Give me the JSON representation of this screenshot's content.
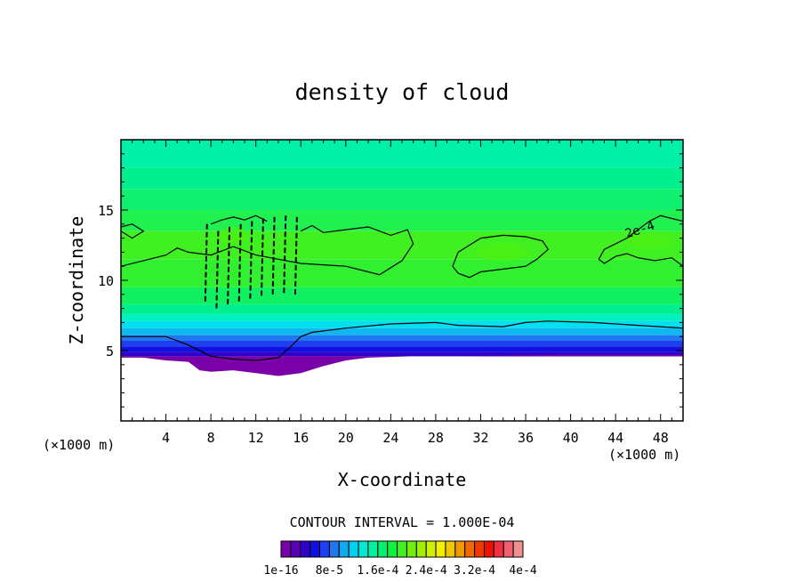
{
  "chart_data": {
    "type": "heatmap",
    "title": "density of cloud",
    "xlabel": "X-coordinate",
    "ylabel": "Z-coordinate",
    "x_unit_left": "(×1000 m)",
    "x_unit_right": "(×1000 m)",
    "xlim": [
      0,
      50
    ],
    "ylim": [
      0,
      20
    ],
    "x_ticks": [
      "4",
      "8",
      "12",
      "16",
      "20",
      "24",
      "28",
      "32",
      "36",
      "40",
      "44",
      "48"
    ],
    "y_ticks": [
      "5",
      "10",
      "15"
    ],
    "contour_interval_text": "CONTOUR INTERVAL = 1.000E-04",
    "contour_label": "2e-4",
    "colorbar_labels": [
      "1e-16",
      "8e-5",
      "1.6e-4",
      "2.4e-4",
      "3.2e-4",
      "4e-4"
    ],
    "colorbar_colors": [
      "#7a00a8",
      "#5a00b8",
      "#3000c8",
      "#1010e0",
      "#2040f0",
      "#1f78f0",
      "#12a8f0",
      "#00d0f0",
      "#00e8d0",
      "#00f0a0",
      "#00f070",
      "#10f040",
      "#40f020",
      "#70f010",
      "#a0f000",
      "#d0f000",
      "#f0f000",
      "#f0c800",
      "#f09800",
      "#f06800",
      "#f03800",
      "#f01000",
      "#f03040",
      "#f06070",
      "#f09090"
    ],
    "profile": [
      {
        "z": 20.0,
        "color": "#00f0a8"
      },
      {
        "z": 18.0,
        "color": "#00f090"
      },
      {
        "z": 16.5,
        "color": "#10f070"
      },
      {
        "z": 15.0,
        "color": "#20f050"
      },
      {
        "z": 13.5,
        "color": "#40f020"
      },
      {
        "z": 11.5,
        "color": "#30f030"
      },
      {
        "z": 9.5,
        "color": "#10f060"
      },
      {
        "z": 8.3,
        "color": "#00f090"
      },
      {
        "z": 7.6,
        "color": "#00f0c0"
      },
      {
        "z": 7.1,
        "color": "#00e0f0"
      },
      {
        "z": 6.6,
        "color": "#10b8f0"
      },
      {
        "z": 6.1,
        "color": "#1f78f0"
      },
      {
        "z": 5.7,
        "color": "#2040f0"
      },
      {
        "z": 5.3,
        "color": "#1010e0"
      },
      {
        "z": 4.9,
        "color": "#3000c8"
      },
      {
        "z": 4.6,
        "color": "#7a00a8"
      }
    ],
    "cloud_base": [
      [
        0,
        4.5
      ],
      [
        2,
        4.5
      ],
      [
        4,
        4.3
      ],
      [
        6,
        4.2
      ],
      [
        7,
        3.6
      ],
      [
        8,
        3.5
      ],
      [
        10,
        3.6
      ],
      [
        12,
        3.4
      ],
      [
        14,
        3.2
      ],
      [
        16,
        3.4
      ],
      [
        18,
        3.9
      ],
      [
        20,
        4.3
      ],
      [
        22,
        4.5
      ],
      [
        26,
        4.6
      ],
      [
        30,
        4.6
      ],
      [
        40,
        4.7
      ],
      [
        50,
        4.7
      ]
    ],
    "cloud_top_contour": [
      [
        0,
        6.0
      ],
      [
        4,
        6.0
      ],
      [
        6,
        5.4
      ],
      [
        8,
        4.6
      ],
      [
        10,
        4.4
      ],
      [
        12,
        4.3
      ],
      [
        14,
        4.5
      ],
      [
        15,
        5.2
      ],
      [
        16,
        6.0
      ],
      [
        17,
        6.3
      ],
      [
        20,
        6.6
      ],
      [
        24,
        6.9
      ],
      [
        28,
        7.0
      ],
      [
        30,
        6.8
      ],
      [
        34,
        6.7
      ],
      [
        36,
        7.0
      ],
      [
        38,
        7.1
      ],
      [
        42,
        7.0
      ],
      [
        46,
        6.8
      ],
      [
        50,
        6.6
      ]
    ],
    "upper_contours": [
      [
        [
          0,
          11.0
        ],
        [
          2,
          11.4
        ],
        [
          4,
          11.8
        ],
        [
          5,
          12.3
        ],
        [
          6,
          12.0
        ],
        [
          8,
          11.8
        ],
        [
          10,
          12.4
        ],
        [
          12,
          11.8
        ],
        [
          14,
          11.5
        ],
        [
          16,
          11.2
        ],
        [
          18,
          11.1
        ],
        [
          20,
          11.0
        ],
        [
          22,
          10.6
        ],
        [
          23,
          10.4
        ],
        [
          25,
          11.4
        ],
        [
          26,
          12.6
        ],
        [
          25.5,
          13.6
        ],
        [
          24,
          13.2
        ],
        [
          22,
          13.8
        ],
        [
          20,
          13.6
        ],
        [
          18,
          13.4
        ],
        [
          17,
          13.9
        ],
        [
          16,
          13.5
        ]
      ],
      [
        [
          0,
          13.5
        ],
        [
          1,
          13.0
        ],
        [
          2,
          13.5
        ],
        [
          1,
          14.0
        ],
        [
          0,
          13.8
        ]
      ],
      [
        [
          29.5,
          11.0
        ],
        [
          30,
          12.0
        ],
        [
          31,
          12.5
        ],
        [
          32,
          13.0
        ],
        [
          34,
          13.2
        ],
        [
          36,
          13.1
        ],
        [
          37.5,
          12.8
        ],
        [
          38,
          12.2
        ],
        [
          37,
          11.5
        ],
        [
          36,
          11.0
        ],
        [
          34,
          10.8
        ],
        [
          32,
          10.6
        ],
        [
          31,
          10.2
        ],
        [
          30,
          10.5
        ],
        [
          29.5,
          11.0
        ]
      ],
      [
        [
          42.5,
          11.5
        ],
        [
          43,
          12.2
        ],
        [
          44,
          12.6
        ],
        [
          45,
          13.0
        ],
        [
          46,
          13.6
        ],
        [
          47,
          14.2
        ],
        [
          48,
          14.6
        ],
        [
          49,
          14.4
        ],
        [
          50,
          14.2
        ],
        [
          50,
          11.0
        ],
        [
          49,
          11.6
        ],
        [
          47.5,
          11.4
        ],
        [
          46,
          11.6
        ],
        [
          45,
          11.9
        ],
        [
          44,
          11.7
        ],
        [
          43,
          11.2
        ],
        [
          42.5,
          11.5
        ]
      ],
      [
        [
          8,
          14.0
        ],
        [
          9,
          14.3
        ],
        [
          10,
          14.5
        ],
        [
          11,
          14.3
        ],
        [
          12,
          14.6
        ],
        [
          13,
          14.2
        ]
      ]
    ],
    "storm_stripes": [
      [
        7.5,
        8.5
      ],
      [
        8.5,
        8.0
      ],
      [
        9.5,
        8.3
      ],
      [
        10.5,
        8.5
      ],
      [
        11.5,
        8.7
      ],
      [
        12.5,
        8.9
      ],
      [
        13.5,
        9.0
      ],
      [
        14.5,
        9.1
      ],
      [
        15.5,
        9.0
      ]
    ],
    "contour_label_pos": [
      45,
      13.0
    ]
  }
}
